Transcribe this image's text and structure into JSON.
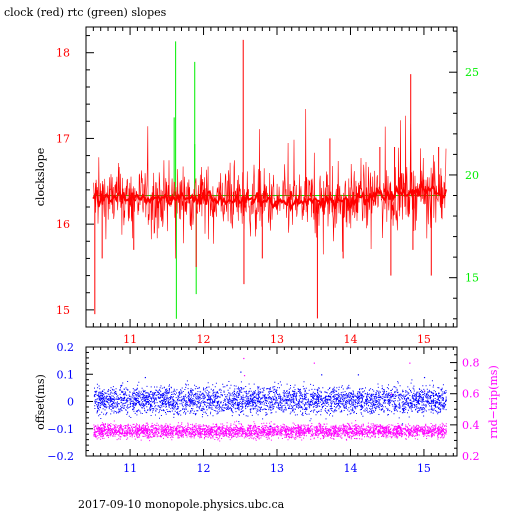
{
  "title": "clock (red) rtc (green) slopes",
  "footer": "2017-09-10 monopole.physics.ubc.ca",
  "colors": {
    "clock": "#ff0000",
    "rtc": "#00ee00",
    "offset": "#0000ff",
    "rnd_trip": "#ff00ff",
    "frame": "#000000"
  },
  "chart_data": [
    {
      "type": "line",
      "title": "clock (red) rtc (green) slopes",
      "ylabel": "clockslope",
      "xlim": [
        10.4,
        15.45
      ],
      "xticks": [
        11,
        12,
        13,
        14,
        15
      ],
      "xtick_labels": [
        "11",
        "12",
        "13",
        "14",
        "15"
      ],
      "ylim_left": [
        14.8,
        18.3
      ],
      "yticks_left": [
        15,
        16,
        17,
        18
      ],
      "ytick_labels_left": [
        "15",
        "16",
        "17",
        "18"
      ],
      "ylim_right": [
        12.6,
        27.2
      ],
      "yticks_right": [
        15,
        20,
        25
      ],
      "ytick_labels_right": [
        "15",
        "20",
        "25"
      ],
      "grid": false,
      "series": [
        {
          "name": "clock",
          "axis": "left",
          "baseline": [
            [
              10.5,
              16.3
            ],
            [
              11.0,
              16.3
            ],
            [
              12.0,
              16.3
            ],
            [
              12.5,
              16.28
            ],
            [
              13.0,
              16.25
            ],
            [
              13.5,
              16.27
            ],
            [
              14.0,
              16.28
            ],
            [
              14.5,
              16.35
            ],
            [
              15.0,
              16.38
            ],
            [
              15.3,
              16.38
            ]
          ],
          "noise_amplitude": 0.18,
          "spikes": [
            [
              10.52,
              14.95
            ],
            [
              10.62,
              15.6
            ],
            [
              11.05,
              15.7
            ],
            [
              11.9,
              15.5
            ],
            [
              12.54,
              18.15
            ],
            [
              12.55,
              15.3
            ],
            [
              12.8,
              15.6
            ],
            [
              13.55,
              14.9
            ],
            [
              13.72,
              17.0
            ],
            [
              13.9,
              15.6
            ],
            [
              14.4,
              16.9
            ],
            [
              14.55,
              15.4
            ],
            [
              14.6,
              16.9
            ],
            [
              14.82,
              17.75
            ],
            [
              14.85,
              15.7
            ],
            [
              15.1,
              15.4
            ],
            [
              15.2,
              16.9
            ]
          ]
        },
        {
          "name": "rtc",
          "axis": "right",
          "baseline": [
            [
              10.5,
              19.0
            ],
            [
              11.5,
              19.0
            ],
            [
              12.0,
              19.0
            ],
            [
              13.0,
              19.0
            ],
            [
              14.0,
              19.0
            ],
            [
              15.0,
              19.0
            ],
            [
              15.3,
              19.0
            ]
          ],
          "spikes": [
            [
              11.62,
              26.5
            ],
            [
              11.63,
              13.0
            ],
            [
              11.6,
              22.8
            ],
            [
              11.88,
              25.5
            ],
            [
              11.9,
              14.2
            ],
            [
              11.88,
              21.5
            ]
          ]
        }
      ]
    },
    {
      "type": "scatter",
      "ylabel_left": "offset(ms)",
      "ylabel_right": "rnd−trip(ms)",
      "xlim": [
        10.4,
        15.45
      ],
      "xticks": [
        11,
        12,
        13,
        14,
        15
      ],
      "xtick_labels": [
        "11",
        "12",
        "13",
        "14",
        "15"
      ],
      "ylim_left": [
        -0.2,
        0.2
      ],
      "yticks_left": [
        -0.2,
        -0.1,
        0,
        0.1,
        0.2
      ],
      "ytick_labels_left": [
        "−0.2",
        "−0.1",
        "0",
        "0.1",
        "0.2"
      ],
      "ylim_right": [
        0.2,
        0.9
      ],
      "yticks_right": [
        0.2,
        0.4,
        0.6,
        0.8
      ],
      "ytick_labels_right": [
        "0.2",
        "0.4",
        "0.6",
        "0.8"
      ],
      "grid": false,
      "series": [
        {
          "name": "offset",
          "axis": "left",
          "x_range": [
            10.5,
            15.3
          ],
          "center": 0.005,
          "spread": 0.045,
          "outliers": [
            [
              11.2,
              0.09
            ],
            [
              12.5,
              0.11
            ],
            [
              13.6,
              0.1
            ],
            [
              14.1,
              0.1
            ],
            [
              15.0,
              0.09
            ],
            [
              12.9,
              -0.09
            ],
            [
              14.7,
              -0.08
            ]
          ]
        },
        {
          "name": "rnd_trip",
          "axis": "right",
          "x_range": [
            10.5,
            15.3
          ],
          "center": 0.36,
          "spread": 0.04,
          "outliers": [
            [
              12.54,
              0.83
            ],
            [
              12.55,
              0.72
            ],
            [
              13.5,
              0.8
            ],
            [
              14.8,
              0.8
            ],
            [
              15.0,
              0.62
            ],
            [
              14.55,
              0.6
            ],
            [
              11.8,
              0.55
            ]
          ]
        }
      ]
    }
  ]
}
